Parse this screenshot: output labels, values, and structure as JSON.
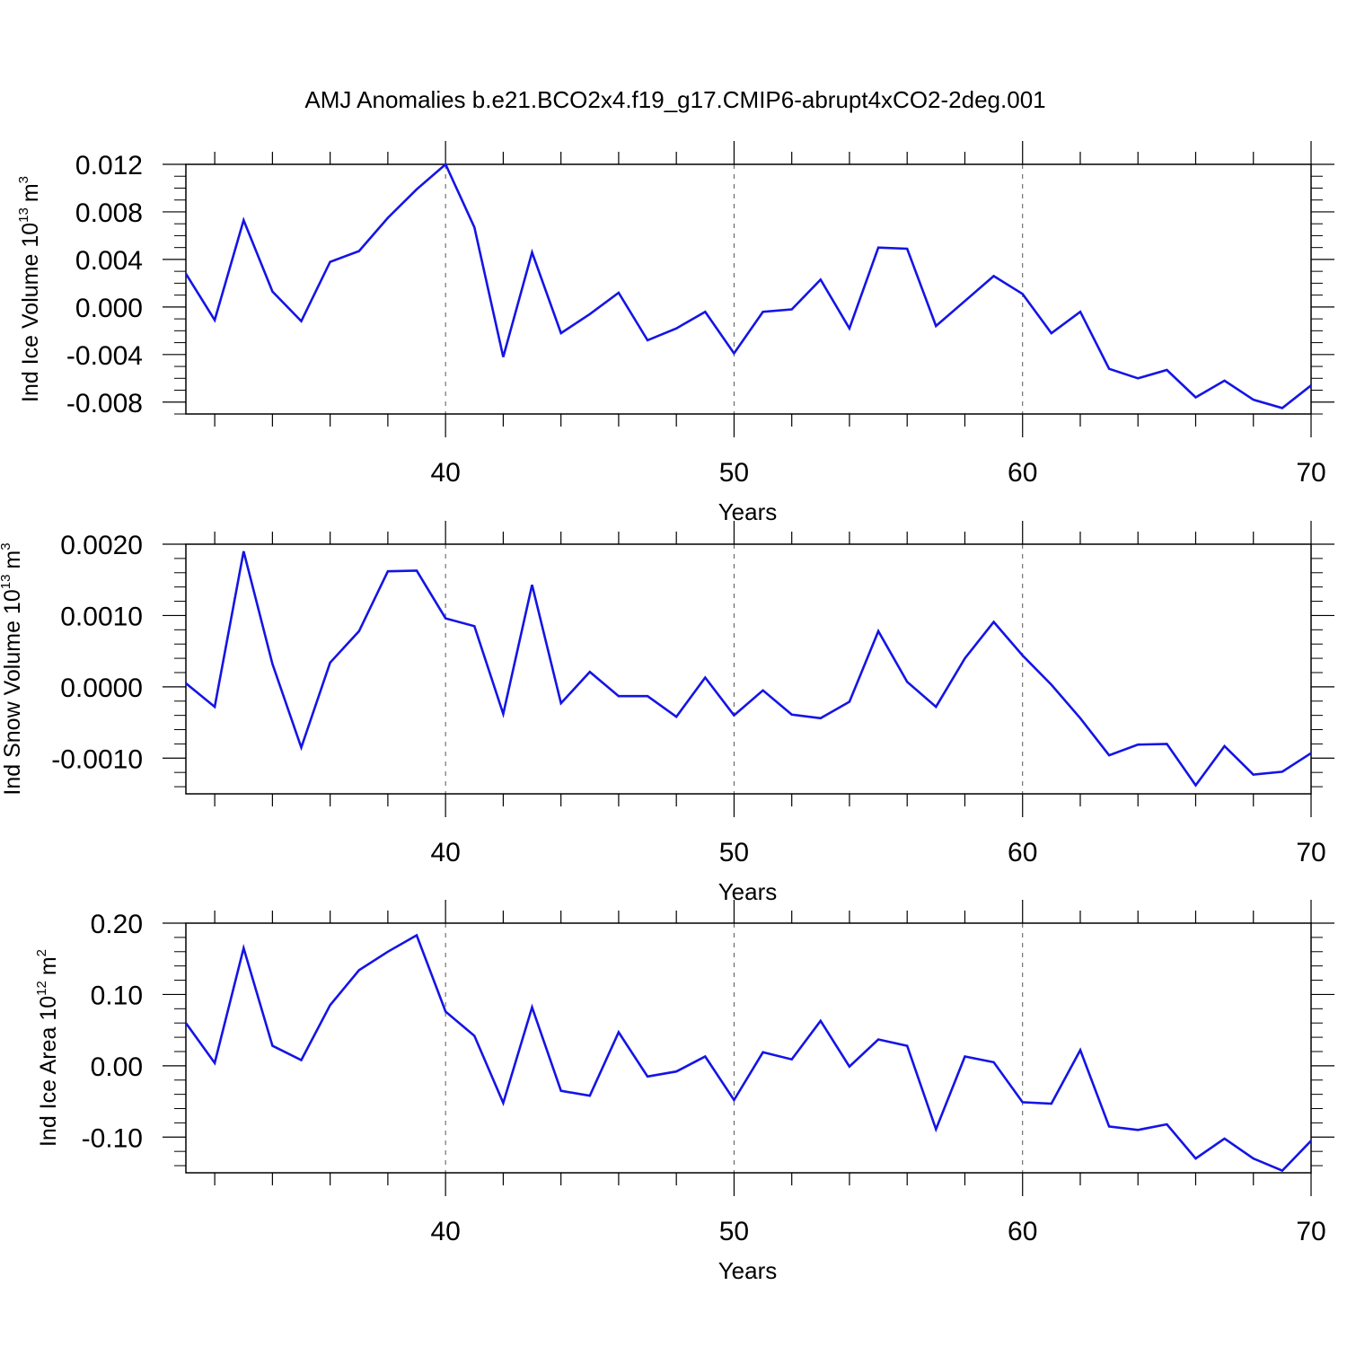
{
  "title": "AMJ Anomalies b.e21.BCO2x4.f19_g17.CMIP6-abrupt4xCO2-2deg.001",
  "colors": {
    "line": "#1414e6",
    "axis": "#000000",
    "grid": "#555555"
  },
  "chart_data": [
    {
      "type": "line",
      "ylabel_text": "Ind Ice Volume 10",
      "ylabel_sup_exp": "13",
      "ylabel_unit": "m",
      "ylabel_sup_unit": "3",
      "xlabel": "Years",
      "xlim": [
        31,
        70
      ],
      "ylim": [
        -0.009,
        0.012
      ],
      "xticks": [
        40,
        50,
        60,
        70
      ],
      "yticks": [
        {
          "v": -0.008,
          "label": "-0.008"
        },
        {
          "v": -0.004,
          "label": "-0.004"
        },
        {
          "v": 0.0,
          "label": "0.000"
        },
        {
          "v": 0.004,
          "label": "0.004"
        },
        {
          "v": 0.008,
          "label": "0.008"
        },
        {
          "v": 0.012,
          "label": "0.012"
        }
      ],
      "yminor": 0.001,
      "grid_x": true,
      "x": [
        31,
        32,
        33,
        34,
        35,
        36,
        37,
        38,
        39,
        40,
        41,
        42,
        43,
        44,
        45,
        46,
        47,
        48,
        49,
        50,
        51,
        52,
        53,
        54,
        55,
        56,
        57,
        58,
        59,
        60,
        61,
        62,
        63,
        64,
        65,
        66,
        67,
        68,
        69,
        70
      ],
      "y": [
        0.0028,
        -0.0011,
        0.0073,
        0.0013,
        -0.0012,
        0.0038,
        0.0047,
        0.0075,
        0.0099,
        0.012,
        0.0067,
        -0.0042,
        0.0046,
        -0.0022,
        -0.0006,
        0.0012,
        -0.0028,
        -0.0018,
        -0.0004,
        -0.0039,
        -0.0004,
        -0.0002,
        0.0023,
        -0.0018,
        0.005,
        0.0049,
        -0.0016,
        0.0005,
        0.0026,
        0.0011,
        -0.0022,
        -0.0004,
        -0.0052,
        -0.006,
        -0.0053,
        -0.0076,
        -0.0062,
        -0.0078,
        -0.0085,
        -0.0066
      ]
    },
    {
      "type": "line",
      "ylabel_text": "Ind Snow Volume 10",
      "ylabel_sup_exp": "13",
      "ylabel_unit": "m",
      "ylabel_sup_unit": "3",
      "xlabel": "Years",
      "xlim": [
        31,
        70
      ],
      "ylim": [
        -0.0015,
        0.002
      ],
      "xticks": [
        40,
        50,
        60,
        70
      ],
      "yticks": [
        {
          "v": -0.001,
          "label": "-0.0010"
        },
        {
          "v": 0.0,
          "label": "0.0000"
        },
        {
          "v": 0.001,
          "label": "0.0010"
        },
        {
          "v": 0.002,
          "label": "0.0020"
        }
      ],
      "yminor": 0.0002,
      "grid_x": true,
      "x": [
        31,
        32,
        33,
        34,
        35,
        36,
        37,
        38,
        39,
        40,
        41,
        42,
        43,
        44,
        45,
        46,
        47,
        48,
        49,
        50,
        51,
        52,
        53,
        54,
        55,
        56,
        57,
        58,
        59,
        60,
        61,
        62,
        63,
        64,
        65,
        66,
        67,
        68,
        69,
        70
      ],
      "y": [
        5e-05,
        -0.00028,
        0.0019,
        0.00032,
        -0.00085,
        0.00034,
        0.00078,
        0.00162,
        0.00163,
        0.00096,
        0.00085,
        -0.00038,
        0.00143,
        -0.00023,
        0.00021,
        -0.00013,
        -0.00013,
        -0.00042,
        0.00013,
        -0.0004,
        -5e-05,
        -0.00039,
        -0.00044,
        -0.00021,
        0.00078,
        7e-05,
        -0.00028,
        0.0004,
        0.00091,
        0.00044,
        3e-05,
        -0.00044,
        -0.00096,
        -0.00081,
        -0.0008,
        -0.00138,
        -0.00083,
        -0.00123,
        -0.00119,
        -0.00093
      ]
    },
    {
      "type": "line",
      "ylabel_text": "Ind Ice Area 10",
      "ylabel_sup_exp": "12",
      "ylabel_unit": "m",
      "ylabel_sup_unit": "2",
      "xlabel": "Years",
      "xlim": [
        31,
        70
      ],
      "ylim": [
        -0.15,
        0.2
      ],
      "xticks": [
        40,
        50,
        60,
        70
      ],
      "yticks": [
        {
          "v": -0.1,
          "label": "-0.10"
        },
        {
          "v": 0.0,
          "label": "0.00"
        },
        {
          "v": 0.1,
          "label": "0.10"
        },
        {
          "v": 0.2,
          "label": "0.20"
        }
      ],
      "yminor": 0.02,
      "grid_x": true,
      "x": [
        31,
        32,
        33,
        34,
        35,
        36,
        37,
        38,
        39,
        40,
        41,
        42,
        43,
        44,
        45,
        46,
        47,
        48,
        49,
        50,
        51,
        52,
        53,
        54,
        55,
        56,
        57,
        58,
        59,
        60,
        61,
        62,
        63,
        64,
        65,
        66,
        67,
        68,
        69,
        70
      ],
      "y": [
        0.06,
        0.004,
        0.165,
        0.028,
        0.008,
        0.085,
        0.134,
        0.16,
        0.183,
        0.076,
        0.042,
        -0.052,
        0.082,
        -0.035,
        -0.042,
        0.047,
        -0.015,
        -0.008,
        0.013,
        -0.048,
        0.019,
        0.009,
        0.063,
        -0.001,
        0.037,
        0.028,
        -0.089,
        0.013,
        0.005,
        -0.051,
        -0.053,
        0.022,
        -0.085,
        -0.09,
        -0.082,
        -0.13,
        -0.102,
        -0.13,
        -0.147,
        -0.105
      ]
    }
  ]
}
